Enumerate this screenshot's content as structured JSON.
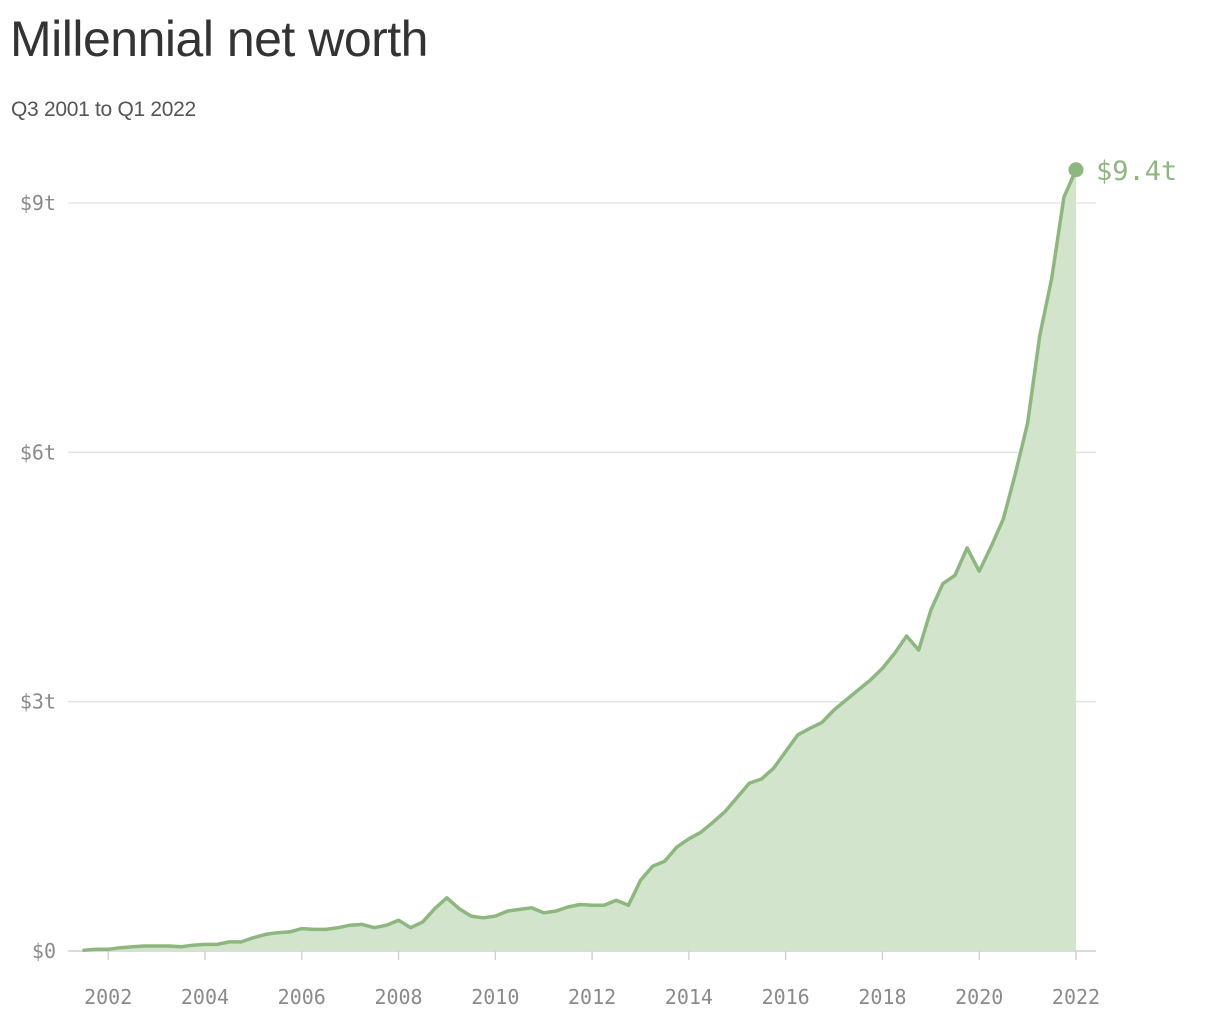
{
  "title": "Millennial net worth",
  "subtitle": "Q3 2001 to Q1 2022",
  "chart_data": {
    "type": "area",
    "title": "Millennial net worth",
    "subtitle": "Q3 2001 to Q1 2022",
    "xlabel": "",
    "ylabel": "",
    "xlim": [
      2001.5,
      2022.0
    ],
    "ylim": [
      0,
      9.0
    ],
    "y_unit": "trillions of dollars",
    "x_ticks": [
      2002,
      2004,
      2006,
      2008,
      2010,
      2012,
      2014,
      2016,
      2018,
      2020,
      2022
    ],
    "x_tick_labels": [
      "2002",
      "2004",
      "2006",
      "2008",
      "2010",
      "2012",
      "2014",
      "2016",
      "2018",
      "2020",
      "2022"
    ],
    "y_ticks": [
      0,
      3,
      6,
      9
    ],
    "y_tick_labels": [
      "$0",
      "$3t",
      "$6t",
      "$9t"
    ],
    "grid": "horizontal",
    "line_color": "#8db77f",
    "fill_color": "#d2e4cc",
    "end_label": "$9.4t",
    "series": [
      {
        "x": [
          2001.5,
          2001.75,
          2002.0,
          2002.25,
          2002.5,
          2002.75,
          2003.0,
          2003.25,
          2003.5,
          2003.75,
          2004.0,
          2004.25,
          2004.5,
          2004.75,
          2005.0,
          2005.25,
          2005.5,
          2005.75,
          2006.0,
          2006.25,
          2006.5,
          2006.75,
          2007.0,
          2007.25,
          2007.5,
          2007.75,
          2008.0,
          2008.25,
          2008.5,
          2008.75,
          2009.0,
          2009.25,
          2009.5,
          2009.75,
          2010.0,
          2010.25,
          2010.5,
          2010.75,
          2011.0,
          2011.25,
          2011.5,
          2011.75,
          2012.0,
          2012.25,
          2012.5,
          2012.75,
          2013.0,
          2013.25,
          2013.5,
          2013.75,
          2014.0,
          2014.25,
          2014.5,
          2014.75,
          2015.0,
          2015.25,
          2015.5,
          2015.75,
          2016.0,
          2016.25,
          2016.5,
          2016.75,
          2017.0,
          2017.25,
          2017.5,
          2017.75,
          2018.0,
          2018.25,
          2018.5,
          2018.75,
          2019.0,
          2019.25,
          2019.5,
          2019.75,
          2020.0,
          2020.25,
          2020.5,
          2020.75,
          2021.0,
          2021.25,
          2021.5,
          2021.75,
          2022.0
        ],
        "values": [
          0.01,
          0.02,
          0.02,
          0.04,
          0.05,
          0.06,
          0.06,
          0.06,
          0.05,
          0.07,
          0.08,
          0.08,
          0.11,
          0.11,
          0.16,
          0.2,
          0.22,
          0.23,
          0.27,
          0.26,
          0.26,
          0.28,
          0.31,
          0.32,
          0.28,
          0.31,
          0.37,
          0.28,
          0.35,
          0.51,
          0.64,
          0.51,
          0.42,
          0.4,
          0.42,
          0.48,
          0.5,
          0.52,
          0.46,
          0.48,
          0.53,
          0.56,
          0.55,
          0.55,
          0.61,
          0.55,
          0.85,
          1.02,
          1.08,
          1.25,
          1.35,
          1.43,
          1.55,
          1.68,
          1.85,
          2.02,
          2.07,
          2.2,
          2.4,
          2.6,
          2.68,
          2.75,
          2.9,
          3.02,
          3.14,
          3.26,
          3.4,
          3.58,
          3.79,
          3.62,
          4.1,
          4.42,
          4.52,
          4.85,
          4.57,
          4.87,
          5.2,
          5.75,
          6.35,
          7.4,
          8.1,
          9.07,
          9.4
        ]
      }
    ]
  }
}
